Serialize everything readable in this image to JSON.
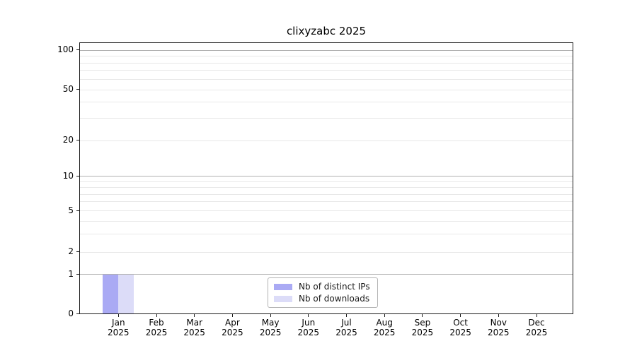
{
  "chart_data": {
    "type": "bar",
    "title": "clixyzabc 2025",
    "categories": [
      {
        "month": "Jan",
        "year": "2025"
      },
      {
        "month": "Feb",
        "year": "2025"
      },
      {
        "month": "Mar",
        "year": "2025"
      },
      {
        "month": "Apr",
        "year": "2025"
      },
      {
        "month": "May",
        "year": "2025"
      },
      {
        "month": "Jun",
        "year": "2025"
      },
      {
        "month": "Jul",
        "year": "2025"
      },
      {
        "month": "Aug",
        "year": "2025"
      },
      {
        "month": "Sep",
        "year": "2025"
      },
      {
        "month": "Oct",
        "year": "2025"
      },
      {
        "month": "Nov",
        "year": "2025"
      },
      {
        "month": "Dec",
        "year": "2025"
      }
    ],
    "series": [
      {
        "name": "Nb of distinct IPs",
        "color": "#aaaaf4",
        "values": [
          1,
          0,
          0,
          0,
          0,
          0,
          0,
          0,
          0,
          0,
          0,
          0
        ]
      },
      {
        "name": "Nb of downloads",
        "color": "#dcdcf8",
        "values": [
          1,
          0,
          0,
          0,
          0,
          0,
          0,
          0,
          0,
          0,
          0,
          0
        ]
      }
    ],
    "y_axis": {
      "ticks": [
        100,
        50,
        20,
        10,
        5,
        2,
        1,
        0
      ],
      "scale": "symlog",
      "grid_major": [
        100,
        10,
        1
      ],
      "grid_minor": [
        90,
        80,
        70,
        60,
        50,
        40,
        30,
        20,
        9,
        8,
        7,
        6,
        5,
        4,
        3,
        2
      ]
    },
    "legend": {
      "position": "lower center"
    },
    "colors": {
      "major_grid": "#b0b0b0",
      "minor_grid": "#e8e8e8",
      "axis": "#1a1a1a",
      "text": "#000000",
      "legend_border": "#b3b3b3",
      "background": "#ffffff"
    }
  }
}
